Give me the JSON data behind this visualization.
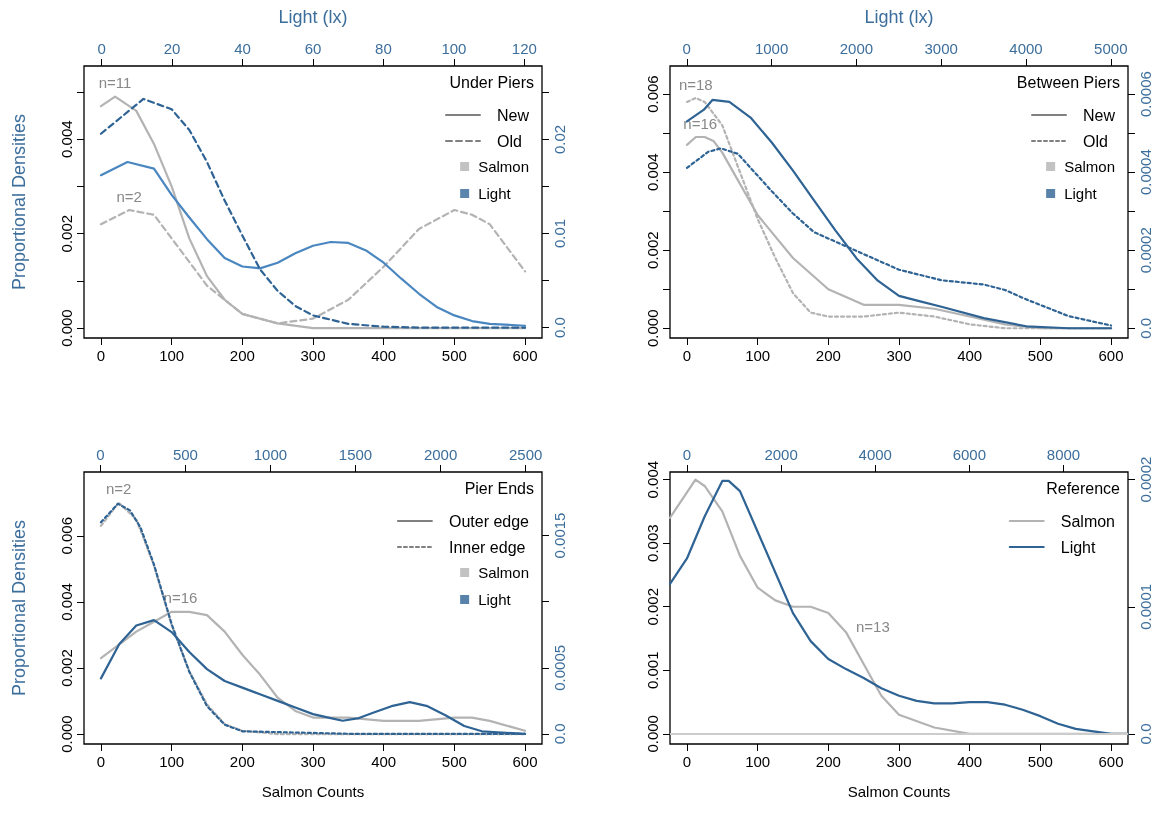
{
  "chart_data": [
    {
      "type": "line",
      "x2label": "Light (lx)",
      "ylabel": "Proportional Densities",
      "legend_title": "Under Piers",
      "legend": "top right",
      "marker": "none",
      "xlim": [
        -24,
        624
      ],
      "xticks": [
        0,
        100,
        200,
        300,
        400,
        500,
        600
      ],
      "x2lim": [
        -5,
        125
      ],
      "x2ticks": [
        0,
        20,
        40,
        60,
        80,
        100,
        120
      ],
      "ylim": [
        -0.00021,
        0.00555
      ],
      "yticks": [
        {
          "value": 0,
          "label": "0.000"
        },
        {
          "value": 0.001,
          "label": null
        },
        0.002,
        {
          "value": 0.003,
          "label": null
        },
        0.004,
        {
          "value": 0.005,
          "label": null
        }
      ],
      "y2lim": [
        -0.0011,
        0.0278
      ],
      "y2ticks": [
        {
          "value": 0,
          "label": "0.0"
        },
        {
          "value": 0.005,
          "label": null
        },
        0.01,
        {
          "value": 0.015,
          "label": null
        },
        0.02,
        {
          "value": 0.025,
          "label": null
        }
      ],
      "annotations": [
        "n=11",
        "n=2"
      ],
      "series": [
        {
          "color": "#b3b3b3",
          "line_style": "solid",
          "x": [
            0,
            20,
            50,
            75,
            100,
            125,
            150,
            175,
            200,
            250,
            300,
            350,
            400,
            500,
            600
          ],
          "values": [
            0.0047,
            0.0049,
            0.0046,
            0.0039,
            0.003,
            0.0019,
            0.0011,
            0.0006,
            0.0003,
            0.0001,
            0,
            0,
            0,
            0,
            0
          ]
        },
        {
          "color": "#b3b3b3",
          "line_style": "dashed",
          "x": [
            0,
            40,
            75,
            100,
            150,
            200,
            250,
            300,
            350,
            400,
            450,
            500,
            525,
            550,
            575,
            600
          ],
          "values": [
            0.0022,
            0.0025,
            0.0024,
            0.0019,
            0.0009,
            0.0003,
            0.0001,
            0.0002,
            0.0006,
            0.0013,
            0.0021,
            0.0025,
            0.0024,
            0.0022,
            0.0017,
            0.0012
          ]
        },
        {
          "color": "#4a86c0",
          "line_style": "solid",
          "axis": "y2",
          "x": [
            0,
            37.5,
            75,
            100,
            125,
            150,
            175,
            200,
            225,
            250,
            275,
            300,
            325,
            350,
            375,
            400,
            425,
            450,
            475,
            500,
            525,
            550,
            600
          ],
          "values": [
            0.0162,
            0.0176,
            0.0169,
            0.0141,
            0.0117,
            0.0094,
            0.0074,
            0.0065,
            0.0063,
            0.0069,
            0.0079,
            0.0087,
            0.0091,
            0.009,
            0.0082,
            0.0069,
            0.0052,
            0.0036,
            0.0022,
            0.0013,
            0.0007,
            0.0004,
            0.0002
          ]
        },
        {
          "color": "#2e6394",
          "line_style": "dashed",
          "axis": "y2",
          "x": [
            0,
            60,
            100,
            125,
            150,
            175,
            200,
            225,
            250,
            275,
            300,
            350,
            400,
            450,
            600
          ],
          "values": [
            0.0206,
            0.0243,
            0.0232,
            0.021,
            0.0176,
            0.0135,
            0.0098,
            0.0062,
            0.0039,
            0.0023,
            0.0013,
            0.0004,
            0.0001,
            0,
            0
          ]
        },
        {
          "name": "New",
          "color": "#808080",
          "line_style": "solid",
          "marker": "none",
          "values": [
            null
          ]
        },
        {
          "name": "Old",
          "color": "#808080",
          "line_style": "dashed",
          "marker": "none",
          "values": [
            null
          ]
        },
        {
          "name": "Salmon",
          "type": "scatter",
          "color": "#b3b3b3",
          "marker": "square",
          "values": [
            null
          ]
        },
        {
          "name": "Light",
          "type": "scatter",
          "color": "#336699",
          "marker": "square",
          "values": [
            null
          ]
        }
      ]
    },
    {
      "type": "line",
      "x2label": "Light (lx)",
      "legend_title": "Between Piers",
      "legend": "top right",
      "marker": "none",
      "xlim": [
        -24,
        624
      ],
      "xticks": [
        0,
        100,
        200,
        300,
        400,
        500,
        600
      ],
      "x2lim": [
        -198,
        5203
      ],
      "x2ticks": [
        0,
        1000,
        2000,
        3000,
        4000,
        5000
      ],
      "ylim": [
        -0.00025,
        0.00672
      ],
      "yticks": [
        {
          "value": 0,
          "label": "0.000"
        },
        {
          "value": 0.001,
          "label": null
        },
        0.002,
        {
          "value": 0.003,
          "label": null
        },
        0.004,
        {
          "value": 0.005,
          "label": null
        },
        0.006
      ],
      "y2lim": [
        -2.5e-05,
        0.000672
      ],
      "y2ticks": [
        {
          "value": 0,
          "label": "0.0"
        },
        {
          "value": 0.0001,
          "label": null
        },
        0.0002,
        {
          "value": 0.0003,
          "label": null
        },
        0.0004,
        {
          "value": 0.0005,
          "label": null
        },
        0.0006
      ],
      "annotations": [
        "n=16",
        "n=18"
      ],
      "series": [
        {
          "color": "#b3b3b3",
          "line_style": "solid",
          "x": [
            0,
            12.5,
            25,
            37.5,
            50,
            75,
            100,
            150,
            200,
            250,
            300,
            350,
            400,
            450,
            500,
            600
          ],
          "values": [
            0.0047,
            0.0049,
            0.0049,
            0.0048,
            0.0045,
            0.0037,
            0.0029,
            0.0018,
            0.001,
            0.0006,
            0.0006,
            0.0005,
            0.0003,
            0.0001,
            0,
            0
          ]
        },
        {
          "color": "#b3b3b3",
          "line_style": "dotted",
          "x": [
            0,
            12.5,
            25,
            50,
            75,
            100,
            125,
            150,
            175,
            200,
            225,
            250,
            300,
            350,
            400,
            450,
            500,
            600
          ],
          "values": [
            0.0058,
            0.0059,
            0.0058,
            0.0052,
            0.004,
            0.0028,
            0.0018,
            0.0009,
            0.0004,
            0.0003,
            0.0003,
            0.0003,
            0.0004,
            0.0003,
            0.0001,
            0,
            0,
            0
          ]
        },
        {
          "color": "#2e6394",
          "line_style": "solid",
          "axis": "y2",
          "x": [
            0,
            24,
            36,
            60,
            90,
            120,
            150,
            180,
            210,
            240,
            270,
            300,
            330,
            360,
            420,
            480,
            540,
            600
          ],
          "values": [
            0.00053,
            0.00056,
            0.000585,
            0.00058,
            0.00054,
            0.000476,
            0.000404,
            0.000327,
            0.000251,
            0.000179,
            0.000122,
            8.3e-05,
            6.9e-05,
            5.5e-05,
            2.6e-05,
            5e-06,
            0,
            0
          ]
        },
        {
          "color": "#2e6394",
          "line_style": "dotted",
          "axis": "y2",
          "x": [
            0,
            30,
            48,
            72,
            120,
            150,
            180,
            240,
            300,
            360,
            420,
            450,
            480,
            540,
            600
          ],
          "values": [
            0.000411,
            0.000452,
            0.000461,
            0.000447,
            0.000351,
            0.000294,
            0.000246,
            0.000198,
            0.00015,
            0.000123,
            0.000112,
            9.8e-05,
            7.4e-05,
            3.1e-05,
            7e-06
          ]
        },
        {
          "name": "New",
          "color": "#808080",
          "line_style": "solid",
          "marker": "none",
          "values": [
            null
          ]
        },
        {
          "name": "Old",
          "color": "#808080",
          "line_style": "dotted",
          "marker": "none",
          "values": [
            null
          ]
        },
        {
          "name": "Salmon",
          "type": "scatter",
          "color": "#b3b3b3",
          "marker": "square",
          "values": [
            null
          ]
        },
        {
          "name": "Light",
          "type": "scatter",
          "color": "#2e6394",
          "marker": "square",
          "values": [
            null
          ]
        }
      ]
    },
    {
      "type": "line",
      "xlabel": "Salmon Counts",
      "ylabel": "Proportional Densities",
      "legend_title": "Pier Ends",
      "legend": "top right",
      "marker": "none",
      "xlim": [
        -24,
        624
      ],
      "xticks": [
        0,
        100,
        200,
        300,
        400,
        500,
        600
      ],
      "x2lim": [
        -96,
        2596
      ],
      "x2ticks": [
        0,
        500,
        1000,
        1500,
        2000,
        2500
      ],
      "ylim": [
        -0.0003,
        0.00793
      ],
      "yticks": [
        {
          "value": 0,
          "label": "0.000"
        },
        0.002,
        0.004,
        0.006
      ],
      "y2lim": [
        -7.6e-05,
        0.00198
      ],
      "y2ticks": [
        {
          "value": 0,
          "label": "0.0"
        },
        0.0005,
        {
          "value": 0.001,
          "label": null
        },
        0.0015
      ],
      "annotations": [
        "n=16",
        "n=2"
      ],
      "series": [
        {
          "color": "#b3b3b3",
          "line_style": "solid",
          "x": [
            0,
            50,
            75,
            100,
            125,
            150,
            175,
            200,
            225,
            250,
            275,
            300,
            350,
            400,
            425,
            450,
            500,
            525,
            550,
            600
          ],
          "values": [
            0.0023,
            0.0031,
            0.0034,
            0.0037,
            0.0037,
            0.0036,
            0.0031,
            0.0024,
            0.0018,
            0.0011,
            0.0007,
            0.0005,
            0.0005,
            0.0004,
            0.0004,
            0.0004,
            0.0005,
            0.0005,
            0.0004,
            0.0001
          ]
        },
        {
          "color": "#b3b3b3",
          "line_style": "dotted",
          "x": [
            0,
            25,
            50,
            75,
            100,
            125,
            150,
            175,
            200,
            250,
            400,
            600
          ],
          "values": [
            0.0063,
            0.007,
            0.0065,
            0.0051,
            0.0033,
            0.0019,
            0.0009,
            0.0003,
            0.0001,
            0,
            0,
            0
          ]
        },
        {
          "color": "#2e6394",
          "line_style": "solid",
          "axis": "y2",
          "x": [
            0,
            26,
            50,
            75,
            100,
            125,
            150,
            175,
            200,
            225,
            250,
            275,
            300,
            325,
            342,
            365,
            385,
            411,
            437,
            462,
            488,
            514,
            539,
            600
          ],
          "values": [
            0.00042,
            0.00068,
            0.00082,
            0.00086,
            0.00077,
            0.00062,
            0.00049,
            0.0004,
            0.00035,
            0.0003,
            0.00025,
            0.0002,
            0.00015,
            0.00012,
            0.0001,
            0.00012,
            0.00016,
            0.00021,
            0.00024,
            0.00021,
            0.00014,
            6e-05,
            2e-05,
            0
          ]
        },
        {
          "color": "#2e6394",
          "line_style": "dotted",
          "axis": "y2",
          "x": [
            0,
            24,
            41,
            56,
            75,
            100,
            125,
            150,
            175,
            200,
            360,
            600
          ],
          "values": [
            0.0016,
            0.00174,
            0.00169,
            0.00156,
            0.00128,
            0.00083,
            0.00047,
            0.00021,
            7e-05,
            2e-05,
            0,
            0
          ]
        },
        {
          "name": "Outer edge",
          "color": "#808080",
          "line_style": "solid",
          "marker": "none",
          "values": [
            null
          ]
        },
        {
          "name": "Inner edge",
          "color": "#808080",
          "line_style": "dotted",
          "marker": "none",
          "values": [
            null
          ]
        },
        {
          "name": "Salmon",
          "type": "scatter",
          "color": "#b3b3b3",
          "marker": "square",
          "values": [
            null
          ]
        },
        {
          "name": "Light",
          "type": "scatter",
          "color": "#2e6394",
          "marker": "square",
          "values": [
            null
          ]
        }
      ]
    },
    {
      "type": "line",
      "xlabel": "Salmon Counts",
      "legend_title": "Reference",
      "legend": "top right",
      "marker": "none",
      "xlim": [
        -24,
        624
      ],
      "xticks": [
        0,
        100,
        200,
        300,
        400,
        500,
        600
      ],
      "x2lim": [
        -360,
        9370
      ],
      "x2ticks": [
        0,
        2000,
        4000,
        6000,
        8000
      ],
      "ylim": [
        -0.00016,
        0.00412
      ],
      "yticks": [
        {
          "value": 0,
          "label": "0.000"
        },
        0.001,
        0.002,
        0.003,
        0.004
      ],
      "y2lim": [
        -7.9e-06,
        0.000206
      ],
      "y2ticks": [
        {
          "value": 0,
          "label": "0.0"
        },
        0.0001,
        0.0002
      ],
      "annotations": [
        "n=13"
      ],
      "ref_lines": [
        {
          "axis": "y",
          "value": 0,
          "color": "#cccccc"
        }
      ],
      "series": [
        {
          "name": "Salmon",
          "color": "#b3b3b3",
          "line_style": "solid",
          "x": [
            -24,
            0,
            12,
            25,
            50,
            75,
            100,
            125,
            150,
            175,
            200,
            225,
            250,
            275,
            300,
            350,
            400,
            500,
            624
          ],
          "values": [
            0.0034,
            0.0038,
            0.004,
            0.0039,
            0.0035,
            0.0028,
            0.0023,
            0.0021,
            0.002,
            0.002,
            0.0019,
            0.0016,
            0.0011,
            0.0006,
            0.0003,
            0.0001,
            0,
            0,
            0
          ]
        },
        {
          "name": "Light",
          "color": "#2e6394",
          "line_style": "solid",
          "axis": "y2",
          "x": [
            -24,
            0,
            25,
            50,
            59,
            75,
            100,
            125,
            150,
            175,
            200,
            225,
            250,
            275,
            300,
            325,
            350,
            375,
            400,
            425,
            450,
            475,
            500,
            525,
            550,
            575,
            600,
            624
          ],
          "values": [
            0.000118,
            0.000138,
            0.000171,
            0.000199,
            0.000199,
            0.000191,
            0.000159,
            0.000127,
            9.5e-05,
            7.3e-05,
            5.9e-05,
            5.1e-05,
            4.4e-05,
            3.6e-05,
            3e-05,
            2.6e-05,
            2.4e-05,
            2.4e-05,
            2.5e-05,
            2.5e-05,
            2.3e-05,
            1.9e-05,
            1.4e-05,
            8e-06,
            4e-06,
            2e-06,
            0,
            0
          ]
        }
      ]
    }
  ]
}
